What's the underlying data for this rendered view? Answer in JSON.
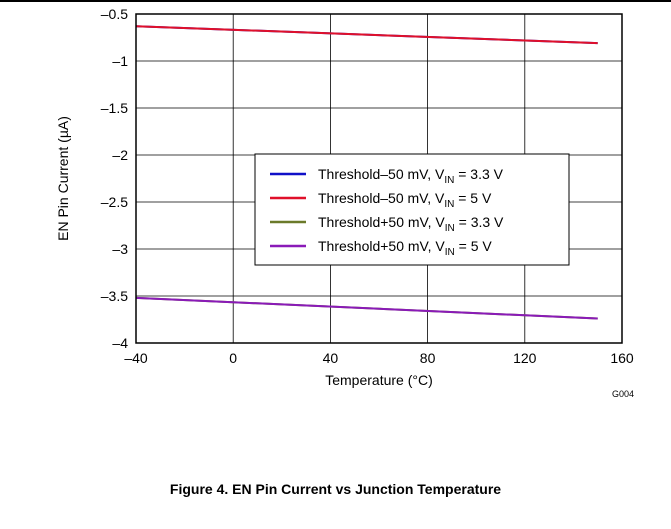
{
  "figure_code": "G004",
  "caption": "Figure 4. EN Pin Current vs Junction Temperature",
  "chart_data": {
    "type": "line",
    "title": "",
    "xlabel": "Temperature (°C)",
    "ylabel": "EN Pin Current (µA)",
    "xlim": [
      -40,
      160
    ],
    "ylim": [
      -4,
      -0.5
    ],
    "x_ticks": [
      -40,
      0,
      40,
      80,
      120,
      160
    ],
    "x_tick_labels": [
      "–40",
      "0",
      "40",
      "80",
      "120",
      "160"
    ],
    "y_ticks": [
      -0.5,
      -1,
      -1.5,
      -2,
      -2.5,
      -3,
      -3.5,
      -4
    ],
    "y_tick_labels": [
      "–0.5",
      "–1",
      "–1.5",
      "–2",
      "–2.5",
      "–3",
      "–3.5",
      "–4"
    ],
    "grid": true,
    "legend_position": "center-right",
    "series": [
      {
        "name": "Threshold–50 mV, VIN = 3.3 V",
        "legend": {
          "pre": "Threshold–50 mV, V",
          "sub": "IN",
          "post": " = 3.3 V"
        },
        "color": "#1010c8",
        "x": [
          -40,
          150
        ],
        "y": [
          -0.63,
          -0.81
        ]
      },
      {
        "name": "Threshold–50 mV, VIN = 5 V",
        "legend": {
          "pre": "Threshold–50 mV, V",
          "sub": "IN",
          "post": " = 5 V"
        },
        "color": "#e0102a",
        "x": [
          -40,
          150
        ],
        "y": [
          -0.63,
          -0.81
        ]
      },
      {
        "name": "Threshold+50 mV, VIN = 3.3 V",
        "legend": {
          "pre": "Threshold+50 mV, V",
          "sub": "IN",
          "post": " = 3.3 V"
        },
        "color": "#6b7a2a",
        "x": [
          -40,
          150
        ],
        "y": [
          -3.52,
          -3.74
        ]
      },
      {
        "name": "Threshold+50 mV, VIN = 5 V",
        "legend": {
          "pre": "Threshold+50 mV, V",
          "sub": "IN",
          "post": " = 5 V"
        },
        "color": "#8a1ab8",
        "x": [
          -40,
          150
        ],
        "y": [
          -3.52,
          -3.74
        ]
      }
    ]
  }
}
